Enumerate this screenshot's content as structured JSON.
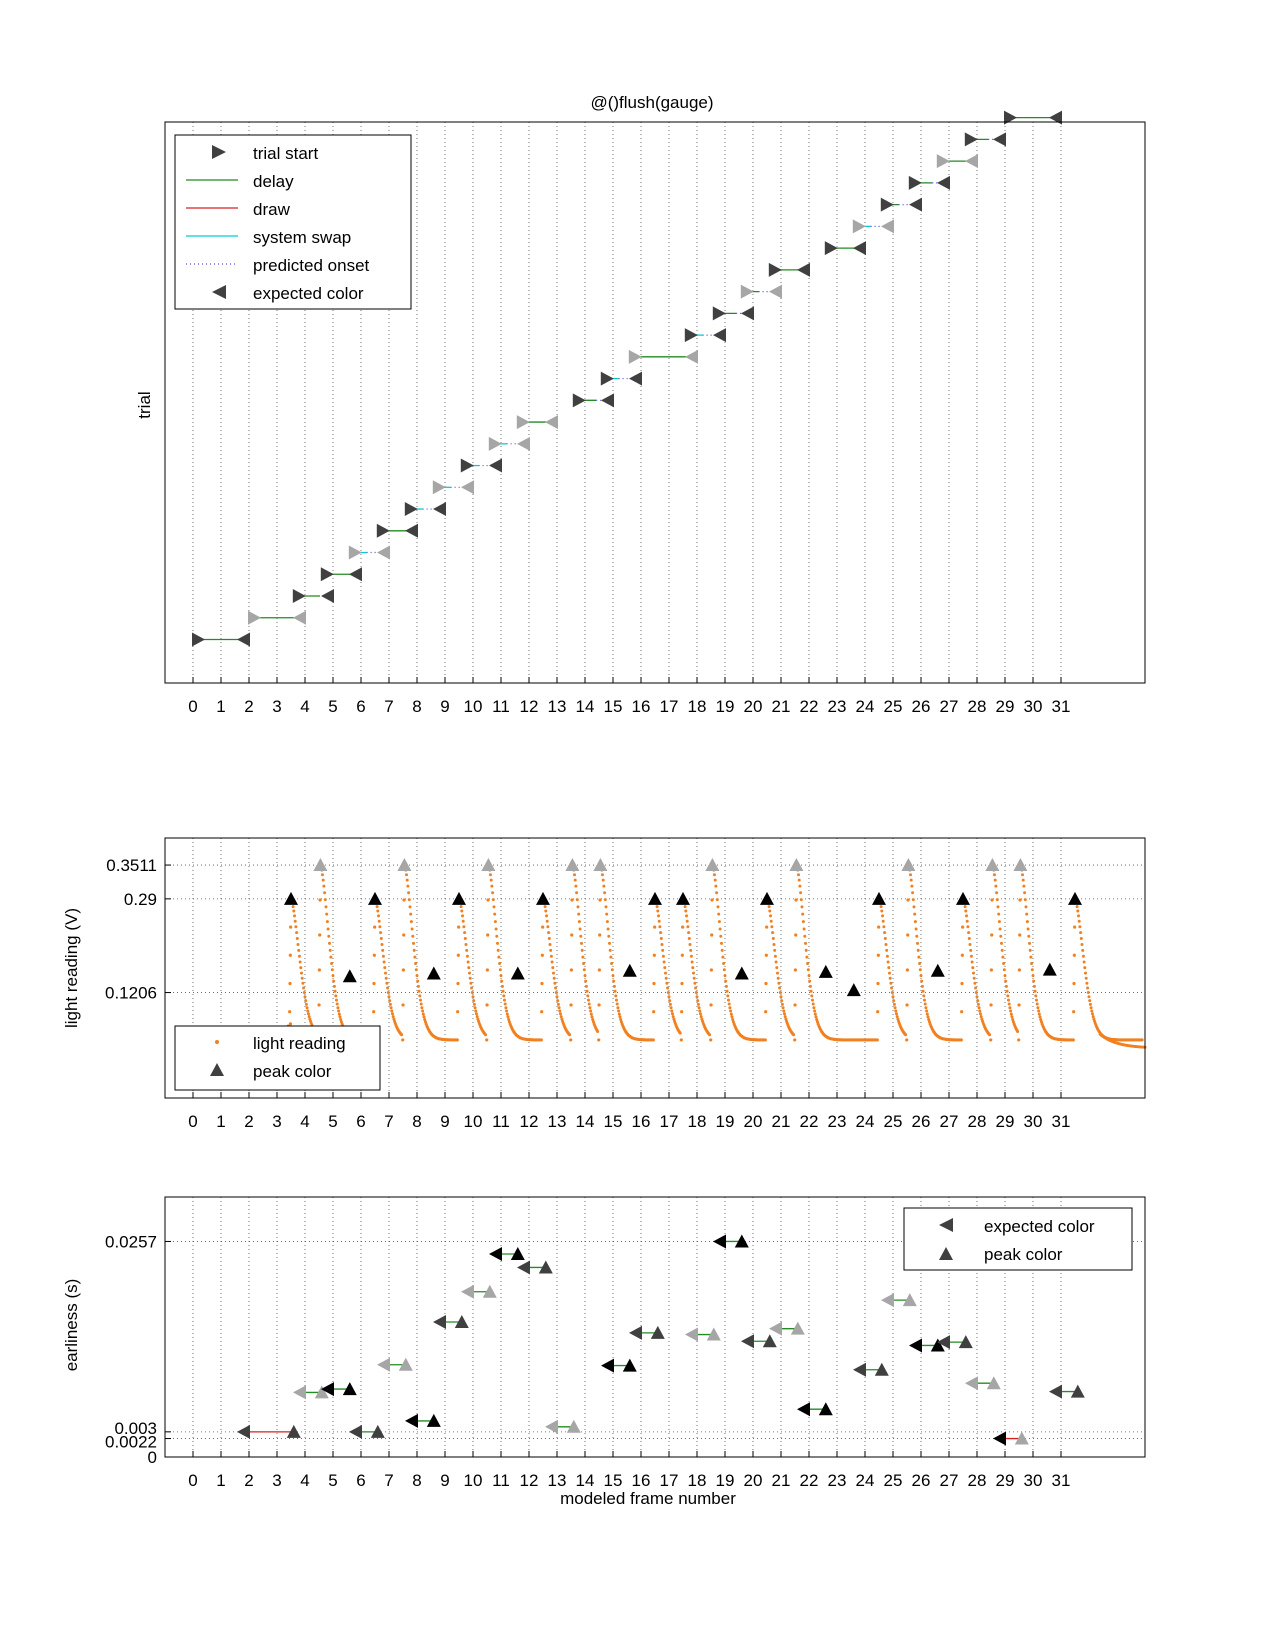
{
  "colors": {
    "dark": "#404040",
    "light": "#a6a6a6",
    "black": "#000000",
    "delay": "#228b22",
    "draw": "#d62020",
    "swap": "#00d0d0",
    "predicted": "#5050d0",
    "light_reading": "#f08020"
  },
  "chart_data": [
    {
      "type": "scatter",
      "title": "@()flush(gauge)",
      "xlabel": "",
      "ylabel": "trial",
      "xlim": [
        -1,
        34
      ],
      "ylim": [
        -1,
        24.8
      ],
      "x_ticks": [
        0,
        1,
        2,
        3,
        4,
        5,
        6,
        7,
        8,
        9,
        10,
        11,
        12,
        13,
        14,
        15,
        16,
        17,
        18,
        19,
        20,
        21,
        22,
        23,
        24,
        25,
        26,
        27,
        28,
        29,
        30,
        31
      ],
      "grid": "vertical",
      "legend": {
        "placement": "top-left",
        "entries": [
          {
            "label": "trial start",
            "marker": "triangle-right"
          },
          {
            "label": "delay",
            "line": "delay"
          },
          {
            "label": "draw",
            "line": "draw"
          },
          {
            "label": "system swap",
            "line": "swap"
          },
          {
            "label": "predicted onset",
            "line": "predicted"
          },
          {
            "label": "expected color",
            "marker": "triangle-left"
          }
        ]
      },
      "trials": [
        {
          "trial": 1,
          "start": 0,
          "delay_end": 1.8,
          "swap_end": 1.8,
          "expected": 2,
          "shade": "dark"
        },
        {
          "trial": 2,
          "start": 2,
          "delay_end": 3.6,
          "swap_end": 3.6,
          "expected": 4,
          "shade": "light"
        },
        {
          "trial": 3,
          "start": 3.6,
          "delay_end": 4.5,
          "swap_end": 4.5,
          "expected": 5,
          "shade": "dark"
        },
        {
          "trial": 4,
          "start": 4.6,
          "delay_end": 5.8,
          "swap_end": 5.8,
          "expected": 6,
          "shade": "dark"
        },
        {
          "trial": 5,
          "start": 5.6,
          "delay_end": 6.0,
          "swap_end": 6.2,
          "expected": 7,
          "shade": "light"
        },
        {
          "trial": 6,
          "start": 6.6,
          "delay_end": 8.0,
          "swap_end": 8.0,
          "expected": 8,
          "shade": "dark"
        },
        {
          "trial": 7,
          "start": 7.6,
          "delay_end": 8.0,
          "swap_end": 8.2,
          "expected": 9,
          "shade": "dark"
        },
        {
          "trial": 8,
          "start": 8.6,
          "delay_end": 9.0,
          "swap_end": 9.2,
          "expected": 10,
          "shade": "light"
        },
        {
          "trial": 9,
          "start": 9.6,
          "delay_end": 10.0,
          "swap_end": 10.2,
          "expected": 11,
          "shade": "dark"
        },
        {
          "trial": 10,
          "start": 10.6,
          "delay_end": 10.8,
          "swap_end": 11.2,
          "expected": 12,
          "shade": "light"
        },
        {
          "trial": 11,
          "start": 11.6,
          "delay_end": 12.6,
          "swap_end": 12.8,
          "expected": 13,
          "shade": "light"
        },
        {
          "trial": 12,
          "start": 13.6,
          "delay_end": 14.4,
          "swap_end": 14.4,
          "expected": 15,
          "shade": "dark"
        },
        {
          "trial": 13,
          "start": 14.6,
          "delay_end": 15.0,
          "swap_end": 15.2,
          "expected": 16,
          "shade": "dark"
        },
        {
          "trial": 14,
          "start": 15.6,
          "delay_end": 17.8,
          "swap_end": 17.8,
          "expected": 18,
          "shade": "light"
        },
        {
          "trial": 15,
          "start": 17.6,
          "delay_end": 17.8,
          "swap_end": 18.2,
          "expected": 19,
          "shade": "dark"
        },
        {
          "trial": 16,
          "start": 18.6,
          "delay_end": 19.4,
          "swap_end": 19.4,
          "expected": 20,
          "shade": "dark"
        },
        {
          "trial": 17,
          "start": 19.6,
          "delay_end": 20.2,
          "swap_end": 20.2,
          "expected": 21,
          "shade": "light"
        },
        {
          "trial": 18,
          "start": 20.6,
          "delay_end": 21.6,
          "swap_end": 21.6,
          "expected": 22,
          "shade": "dark"
        },
        {
          "trial": 19,
          "start": 22.6,
          "delay_end": 23.8,
          "swap_end": 23.8,
          "expected": 24,
          "shade": "dark"
        },
        {
          "trial": 20,
          "start": 23.6,
          "delay_end": 24.0,
          "swap_end": 24.2,
          "expected": 25,
          "shade": "light"
        },
        {
          "trial": 21,
          "start": 24.6,
          "delay_end": 25.2,
          "swap_end": 25.2,
          "expected": 26,
          "shade": "dark"
        },
        {
          "trial": 22,
          "start": 25.6,
          "delay_end": 26.4,
          "swap_end": 26.4,
          "expected": 27,
          "shade": "dark"
        },
        {
          "trial": 23,
          "start": 26.6,
          "delay_end": 27.8,
          "swap_end": 27.8,
          "expected": 28,
          "shade": "light"
        },
        {
          "trial": 24,
          "start": 27.6,
          "delay_end": 28.4,
          "swap_end": 28.4,
          "expected": 29,
          "shade": "dark"
        },
        {
          "trial": 25,
          "start": 29.0,
          "delay_end": 30.6,
          "swap_end": 30.6,
          "expected": 31,
          "shade": "dark"
        }
      ]
    },
    {
      "type": "scatter",
      "title": "",
      "xlabel": "",
      "ylabel": "light reading (V)",
      "xlim": [
        -1,
        34
      ],
      "ylim": [
        -0.07,
        0.4
      ],
      "x_ticks": [
        0,
        1,
        2,
        3,
        4,
        5,
        6,
        7,
        8,
        9,
        10,
        11,
        12,
        13,
        14,
        15,
        16,
        17,
        18,
        19,
        20,
        21,
        22,
        23,
        24,
        25,
        26,
        27,
        28,
        29,
        30,
        31
      ],
      "y_ticks": [
        0.1206,
        0.29,
        0.3511
      ],
      "grid": "both",
      "legend": {
        "placement": "bottom-left",
        "entries": [
          {
            "label": "light reading",
            "marker": "dot"
          },
          {
            "label": "peak color",
            "marker": "triangle-up"
          }
        ]
      },
      "pulses": [
        {
          "t": 3.5,
          "amp": 0.29,
          "shade": "black"
        },
        {
          "t": 4.55,
          "amp": 0.3511,
          "shade": "light"
        },
        {
          "t": 6.5,
          "amp": 0.29,
          "shade": "black"
        },
        {
          "t": 7.55,
          "amp": 0.3511,
          "shade": "light"
        },
        {
          "t": 9.5,
          "amp": 0.29,
          "shade": "black"
        },
        {
          "t": 10.55,
          "amp": 0.3511,
          "shade": "light"
        },
        {
          "t": 12.5,
          "amp": 0.29,
          "shade": "black"
        },
        {
          "t": 13.55,
          "amp": 0.3511,
          "shade": "light"
        },
        {
          "t": 14.55,
          "amp": 0.3511,
          "shade": "light"
        },
        {
          "t": 16.5,
          "amp": 0.29,
          "shade": "black"
        },
        {
          "t": 17.5,
          "amp": 0.29,
          "shade": "black"
        },
        {
          "t": 18.55,
          "amp": 0.3511,
          "shade": "light"
        },
        {
          "t": 20.5,
          "amp": 0.29,
          "shade": "black"
        },
        {
          "t": 21.55,
          "amp": 0.3511,
          "shade": "light"
        },
        {
          "t": 24.5,
          "amp": 0.29,
          "shade": "black"
        },
        {
          "t": 25.55,
          "amp": 0.3511,
          "shade": "light"
        },
        {
          "t": 27.5,
          "amp": 0.29,
          "shade": "black"
        },
        {
          "t": 28.55,
          "amp": 0.3511,
          "shade": "light"
        },
        {
          "t": 29.55,
          "amp": 0.3511,
          "shade": "light"
        },
        {
          "t": 31.5,
          "amp": 0.29,
          "shade": "black"
        }
      ],
      "extra_peaks": [
        {
          "x": 5.6,
          "y": 0.15,
          "shade": "black"
        },
        {
          "x": 8.6,
          "y": 0.155,
          "shade": "black"
        },
        {
          "x": 11.6,
          "y": 0.155,
          "shade": "black"
        },
        {
          "x": 15.6,
          "y": 0.16,
          "shade": "black"
        },
        {
          "x": 19.6,
          "y": 0.155,
          "shade": "black"
        },
        {
          "x": 22.6,
          "y": 0.158,
          "shade": "black"
        },
        {
          "x": 23.6,
          "y": 0.125,
          "shade": "black"
        },
        {
          "x": 26.6,
          "y": 0.16,
          "shade": "black"
        },
        {
          "x": 30.6,
          "y": 0.162,
          "shade": "black"
        }
      ]
    },
    {
      "type": "scatter",
      "title": "",
      "xlabel": "modeled frame number",
      "ylabel": "earliness (s)",
      "xlim": [
        -1,
        34
      ],
      "ylim": [
        0,
        0.031
      ],
      "x_ticks": [
        0,
        1,
        2,
        3,
        4,
        5,
        6,
        7,
        8,
        9,
        10,
        11,
        12,
        13,
        14,
        15,
        16,
        17,
        18,
        19,
        20,
        21,
        22,
        23,
        24,
        25,
        26,
        27,
        28,
        29,
        30,
        31
      ],
      "y_ticks": [
        0,
        0.0022,
        0.003,
        0.0257
      ],
      "y_tick_labels": [
        "0",
        "0.0022",
        "0.003",
        "0.0257"
      ],
      "grid": "both",
      "legend": {
        "placement": "top-right",
        "entries": [
          {
            "label": "expected color",
            "marker": "triangle-left"
          },
          {
            "label": "peak color",
            "marker": "triangle-up"
          }
        ]
      },
      "points": [
        {
          "expected": 2,
          "peak": 3.6,
          "y": 0.003,
          "shade": "dark",
          "line": "draw"
        },
        {
          "expected": 4,
          "peak": 4.6,
          "y": 0.0077,
          "shade": "light"
        },
        {
          "expected": 5,
          "peak": 5.6,
          "y": 0.0081,
          "shade": "black"
        },
        {
          "expected": 6,
          "peak": 6.6,
          "y": 0.003,
          "shade": "dark"
        },
        {
          "expected": 7,
          "peak": 7.6,
          "y": 0.011,
          "shade": "light"
        },
        {
          "expected": 8,
          "peak": 8.6,
          "y": 0.0043,
          "shade": "black"
        },
        {
          "expected": 9,
          "peak": 9.6,
          "y": 0.0161,
          "shade": "dark"
        },
        {
          "expected": 10,
          "peak": 10.6,
          "y": 0.0197,
          "shade": "light"
        },
        {
          "expected": 11,
          "peak": 11.6,
          "y": 0.0242,
          "shade": "black"
        },
        {
          "expected": 12,
          "peak": 12.6,
          "y": 0.0226,
          "shade": "dark"
        },
        {
          "expected": 13,
          "peak": 13.6,
          "y": 0.0036,
          "shade": "light"
        },
        {
          "expected": 15,
          "peak": 15.6,
          "y": 0.0109,
          "shade": "black"
        },
        {
          "expected": 16,
          "peak": 16.6,
          "y": 0.0148,
          "shade": "dark"
        },
        {
          "expected": 18,
          "peak": 18.6,
          "y": 0.0146,
          "shade": "light"
        },
        {
          "expected": 19,
          "peak": 19.6,
          "y": 0.0257,
          "shade": "black"
        },
        {
          "expected": 20,
          "peak": 20.6,
          "y": 0.0138,
          "shade": "dark"
        },
        {
          "expected": 21,
          "peak": 21.6,
          "y": 0.0153,
          "shade": "light"
        },
        {
          "expected": 22,
          "peak": 22.6,
          "y": 0.0057,
          "shade": "black"
        },
        {
          "expected": 24,
          "peak": 24.6,
          "y": 0.0104,
          "shade": "dark"
        },
        {
          "expected": 25,
          "peak": 25.6,
          "y": 0.0187,
          "shade": "light"
        },
        {
          "expected": 26,
          "peak": 26.6,
          "y": 0.0133,
          "shade": "black"
        },
        {
          "expected": 27,
          "peak": 27.6,
          "y": 0.0137,
          "shade": "dark"
        },
        {
          "expected": 28,
          "peak": 28.6,
          "y": 0.0088,
          "shade": "light"
        },
        {
          "expected": 29,
          "peak": 29.6,
          "y": 0.0022,
          "shade": "black",
          "peak_shade": "light",
          "line": "draw"
        },
        {
          "expected": 31,
          "peak": 31.6,
          "y": 0.0078,
          "shade": "dark"
        }
      ]
    }
  ]
}
